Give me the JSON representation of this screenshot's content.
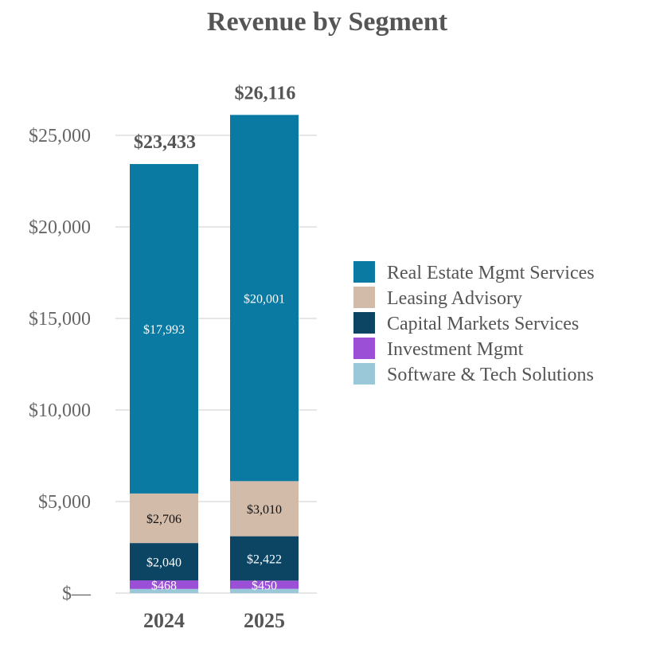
{
  "chart_data": {
    "type": "bar",
    "stacked": true,
    "title": "Revenue by Segment",
    "categories": [
      "2024",
      "2025"
    ],
    "totals": [
      23433,
      26116
    ],
    "totals_labels": [
      "$23,433",
      "$26,116"
    ],
    "ylim": [
      0,
      27000
    ],
    "yticks": [
      0,
      5000,
      10000,
      15000,
      20000,
      25000
    ],
    "ytick_labels": [
      "$—",
      "$5,000",
      "$10,000",
      "$15,000",
      "$20,000",
      "$25,000"
    ],
    "grid": true,
    "legend_position": "right",
    "series": [
      {
        "name": "Software & Tech Solutions",
        "color": "#9bc8d8",
        "values": [
          226,
          233
        ],
        "labels": [
          "",
          ""
        ],
        "label_color": "#ffffff"
      },
      {
        "name": "Investment Mgmt",
        "color": "#9b4fd6",
        "values": [
          468,
          450
        ],
        "labels": [
          "$468",
          "$450"
        ],
        "label_color": "#ffffff"
      },
      {
        "name": "Capital Markets Services",
        "color": "#0b4563",
        "values": [
          2040,
          2422
        ],
        "labels": [
          "$2,040",
          "$2,422"
        ],
        "label_color": "#ffffff"
      },
      {
        "name": "Leasing Advisory",
        "color": "#d3bba9",
        "values": [
          2706,
          3010
        ],
        "labels": [
          "$2,706",
          "$3,010"
        ],
        "label_color": "#111111"
      },
      {
        "name": "Real Estate Mgmt Services",
        "color": "#0a7aa3",
        "values": [
          17993,
          20001
        ],
        "labels": [
          "$17,993",
          "$20,001"
        ],
        "label_color": "#ffffff"
      }
    ],
    "legend_order": [
      "Real Estate Mgmt Services",
      "Leasing Advisory",
      "Capital Markets Services",
      "Investment Mgmt",
      "Software & Tech Solutions"
    ]
  }
}
